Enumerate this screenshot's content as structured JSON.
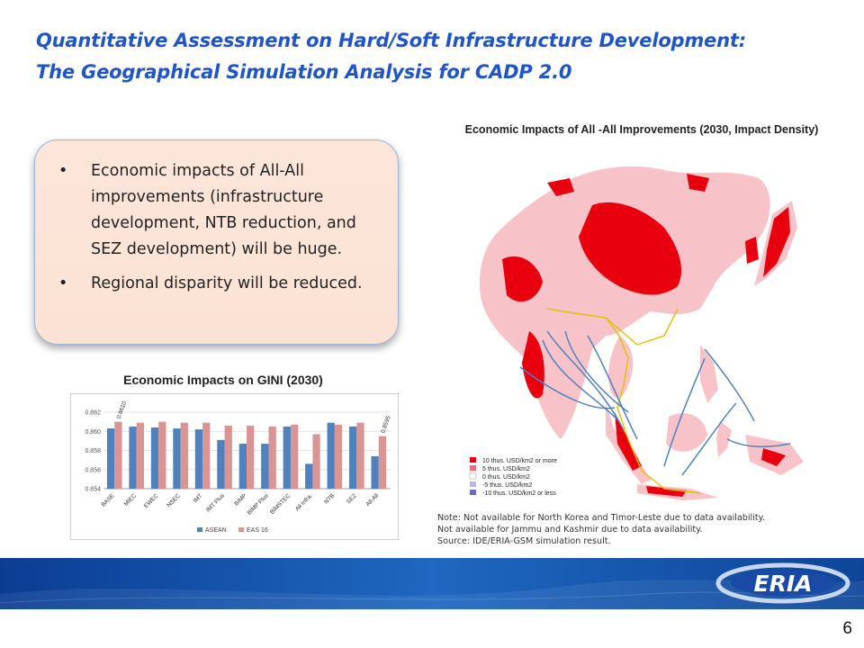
{
  "slide": {
    "title_line1": "Quantitative Assessment on Hard/Soft Infrastructure Development:",
    "title_line2": "The Geographical Simulation Analysis for CADP 2.0",
    "page_number": "6"
  },
  "callout": {
    "bullets": [
      "Economic impacts of All-All improvements (infrastructure development, NTB reduction, and SEZ development) will be huge.",
      "Regional disparity will be reduced."
    ]
  },
  "map": {
    "title": "Economic Impacts of All -All Improvements (2030, Impact Density)",
    "legend": [
      {
        "label": "10 thus. USD/km2 or more",
        "color": "#e8000f"
      },
      {
        "label": "5 thus. USD/km2",
        "color": "#f56a7a"
      },
      {
        "label": "0 thus. USD/km2",
        "color": "#ffffff"
      },
      {
        "label": "-5 thus. USD/km2",
        "color": "#b9b6e6"
      },
      {
        "label": "-10 thus. USD/km2 or less",
        "color": "#6d67c8"
      }
    ],
    "notes": [
      "Note: Not available for North Korea and Timor-Leste due to data availability.",
      "Not available for Jammu and Kashmir due to data availability.",
      "Source: IDE/ERIA-GSM simulation result."
    ]
  },
  "chart_data": {
    "type": "bar",
    "title": "Economic Impacts on GINI (2030)",
    "categories": [
      "BASE",
      "MIEC",
      "EWEC",
      "NSEC",
      "IMT",
      "IMT Plus",
      "BIMP",
      "BIMP Plus",
      "BIMSTEC",
      "All Infra.",
      "NTB",
      "SEZ",
      "All-All"
    ],
    "series": [
      {
        "name": "ASEAN",
        "color": "#4f81bd",
        "values": [
          0.8603,
          0.8605,
          0.8604,
          0.8603,
          0.8602,
          0.8591,
          0.8587,
          0.8587,
          0.8605,
          0.8566,
          0.8609,
          0.8605,
          0.8574
        ]
      },
      {
        "name": "EAS 16",
        "color": "#d99594",
        "values": [
          0.861,
          0.8609,
          0.861,
          0.8609,
          0.8609,
          0.8606,
          0.8606,
          0.8605,
          0.8607,
          0.8597,
          0.8607,
          0.8609,
          0.8595
        ]
      }
    ],
    "data_labels": [
      {
        "category": "BASE",
        "series": "EAS 16",
        "text": "0.8610"
      },
      {
        "category": "All-All",
        "series": "EAS 16",
        "text": "0.8595"
      }
    ],
    "ylim": [
      0.854,
      0.862
    ],
    "yticks": [
      "0.862",
      "0.860",
      "0.858",
      "0.856",
      "0.854"
    ],
    "grid": true,
    "legend_position": "bottom"
  },
  "logo": {
    "text": "ERIA"
  }
}
